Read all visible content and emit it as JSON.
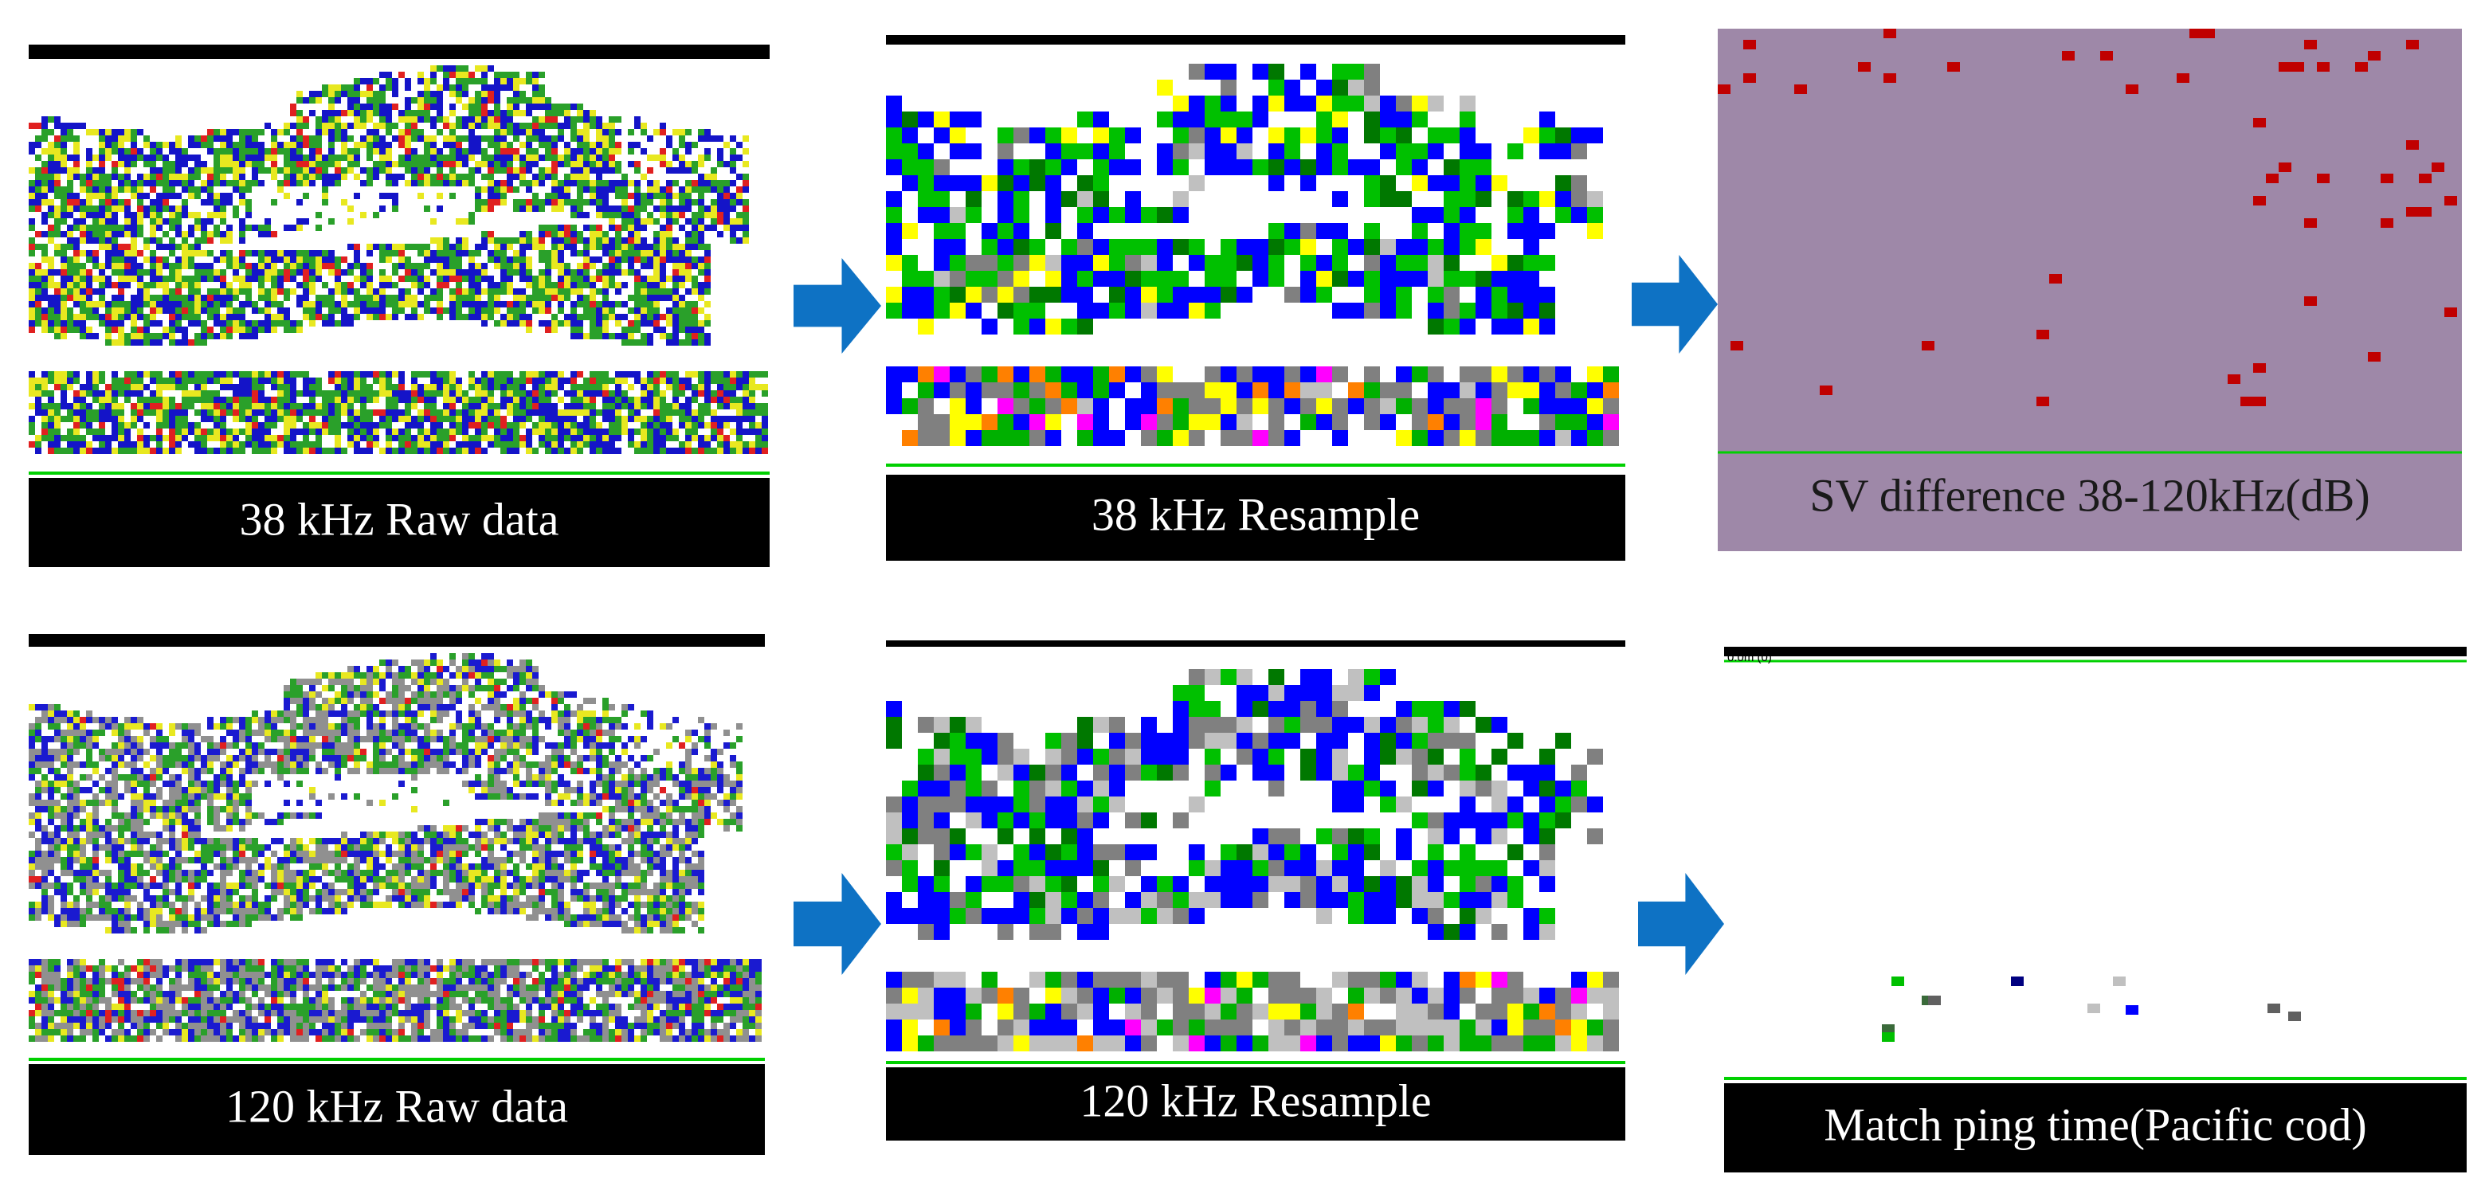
{
  "panels": [
    {
      "caption": "38 kHz Raw data"
    },
    {
      "caption": "38 kHz Resample"
    },
    {
      "caption": "SV difference 38-120kHz(dB)"
    },
    {
      "caption": "120 kHz Raw data"
    },
    {
      "caption": "120 kHz Resample"
    },
    {
      "caption": "Match ping time(Pacific cod)"
    }
  ],
  "depth_label": "0.0m (0)"
}
